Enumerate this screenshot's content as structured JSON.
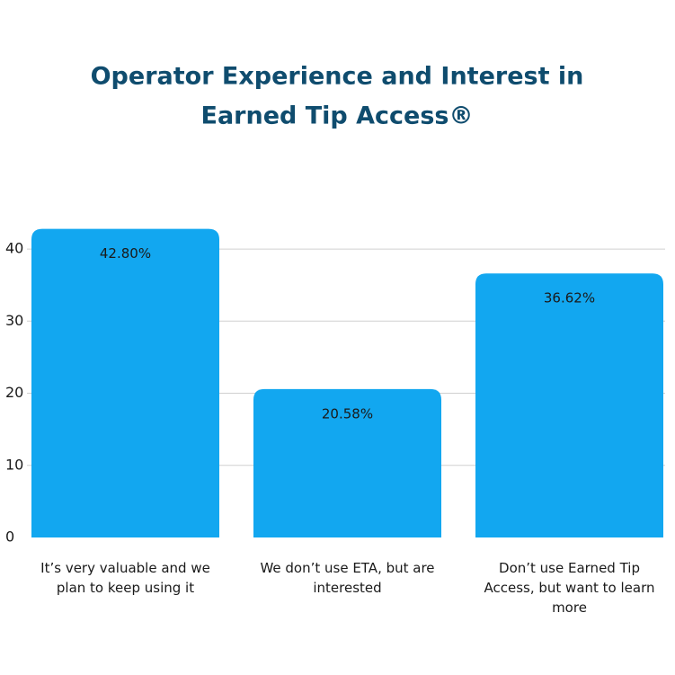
{
  "chart_data": {
    "type": "bar",
    "title": [
      "Operator Experience and Interest in",
      "Earned Tip Access®"
    ],
    "categories": [
      "It’s very valuable and we plan to keep using it",
      "We don’t use ETA, but are interested",
      "Don’t use Earned Tip Access, but want to learn more"
    ],
    "values": [
      42.8,
      20.58,
      36.62
    ],
    "value_labels": [
      "42.80%",
      "20.58%",
      "36.62%"
    ],
    "color": "#12a7f0",
    "ylim": [
      0,
      43
    ],
    "yticks": [
      0,
      10,
      20,
      30,
      40
    ],
    "grid": true
  }
}
